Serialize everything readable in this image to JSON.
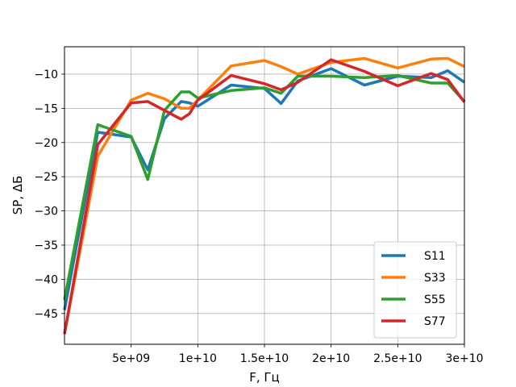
{
  "chart_data": {
    "type": "line",
    "title": "",
    "xlabel": "F, Гц",
    "ylabel": "SP, ΔБ",
    "xlim": [
      0,
      30000000000
    ],
    "ylim": [
      -49.5,
      -6
    ],
    "grid": true,
    "legend_position": "bottom-right",
    "x_ticks": [
      {
        "value": 5000000000,
        "label": "5e+09"
      },
      {
        "value": 10000000000,
        "label": "1e+10"
      },
      {
        "value": 15000000000,
        "label": "1.5e+10"
      },
      {
        "value": 20000000000,
        "label": "2e+10"
      },
      {
        "value": 25000000000,
        "label": "2.5e+10"
      },
      {
        "value": 30000000000,
        "label": "3e+10"
      }
    ],
    "y_ticks": [
      {
        "value": -10,
        "label": "−10"
      },
      {
        "value": -15,
        "label": "−15"
      },
      {
        "value": -20,
        "label": "−20"
      },
      {
        "value": -25,
        "label": "−25"
      },
      {
        "value": -30,
        "label": "−30"
      },
      {
        "value": -35,
        "label": "−35"
      },
      {
        "value": -40,
        "label": "−40"
      },
      {
        "value": -45,
        "label": "−45"
      }
    ],
    "x": [
      0,
      2500000000,
      5000000000,
      6250000000,
      7500000000,
      8750000000,
      9375000000,
      10000000000,
      12500000000,
      15000000000,
      16250000000,
      17500000000,
      20000000000,
      22500000000,
      25000000000,
      27500000000,
      28750000000,
      30000000000
    ],
    "series": [
      {
        "name": "S11",
        "color": "#1f77b4",
        "values": [
          -44.5,
          -18.5,
          -19.2,
          -24.0,
          -16.5,
          -14.0,
          -14.2,
          -14.7,
          -11.6,
          -12.1,
          -14.3,
          -11.0,
          -9.2,
          -11.6,
          -10.3,
          -10.5,
          -9.5,
          -11.2
        ]
      },
      {
        "name": "S33",
        "color": "#ff7f0e",
        "values": [
          -48.0,
          -22.0,
          -13.8,
          -12.8,
          -13.6,
          -15.0,
          -15.0,
          -13.8,
          -8.8,
          -8.0,
          -8.9,
          -10.0,
          -8.3,
          -7.7,
          -9.1,
          -7.8,
          -7.7,
          -8.9
        ]
      },
      {
        "name": "S55",
        "color": "#2ca02c",
        "values": [
          -43.0,
          -17.4,
          -19.1,
          -25.4,
          -15.3,
          -12.6,
          -12.6,
          -13.5,
          -12.4,
          -12.0,
          -12.8,
          -10.3,
          -10.3,
          -10.5,
          -10.2,
          -11.3,
          -11.3,
          -14.0
        ]
      },
      {
        "name": "S77",
        "color": "#d62728",
        "values": [
          -48.0,
          -20.3,
          -14.2,
          -14.0,
          -15.3,
          -16.6,
          -15.8,
          -13.8,
          -10.2,
          -11.4,
          -12.3,
          -11.2,
          -7.9,
          -9.6,
          -11.7,
          -9.9,
          -10.8,
          -14.1
        ]
      }
    ]
  }
}
